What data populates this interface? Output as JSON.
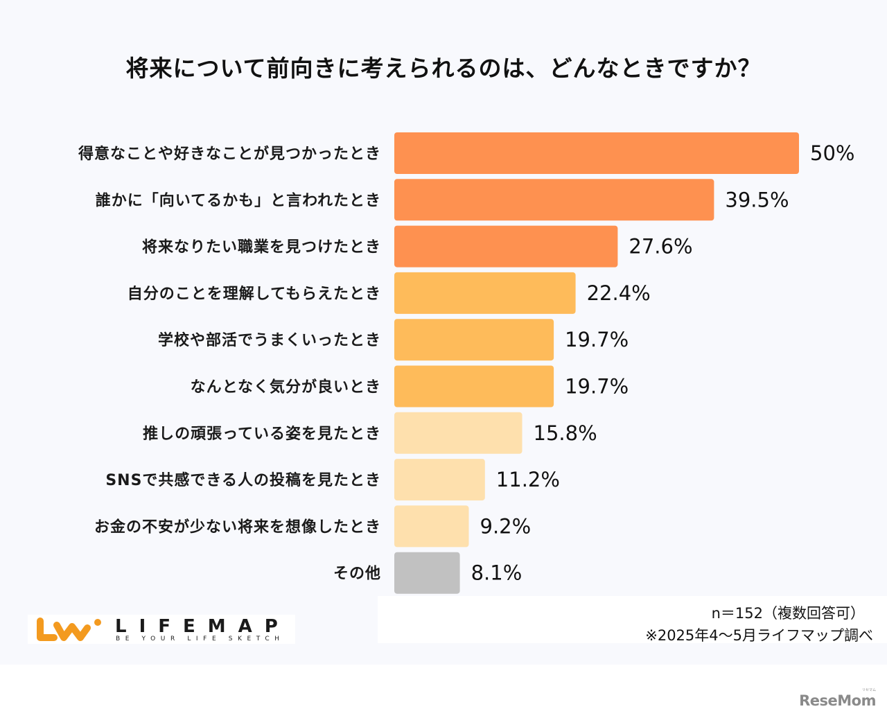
{
  "chart_data": {
    "type": "bar",
    "orientation": "horizontal",
    "title": "将来について前向きに考えられるのは、どんなときですか？",
    "xlabel": "",
    "ylabel": "",
    "xlim": [
      0,
      50
    ],
    "grid": false,
    "legend": "none",
    "categories": [
      "得意なことや好きなことが見つかったとき",
      "誰かに「向いてるかも」と言われたとき",
      "将来なりたい職業を見つけたとき",
      "自分のことを理解してもらえたとき",
      "学校や部活でうまくいったとき",
      "なんとなく気分が良いとき",
      "推しの頑張っている姿を見たとき",
      "SNSで共感できる人の投稿を見たとき",
      "お金の不安が少ない将来を想像したとき",
      "その他"
    ],
    "values": [
      50,
      39.5,
      27.6,
      22.4,
      19.7,
      19.7,
      15.8,
      11.2,
      9.2,
      8.1
    ],
    "value_labels": [
      "50%",
      "39.5%",
      "27.6%",
      "22.4%",
      "19.7%",
      "19.7%",
      "15.8%",
      "11.2%",
      "9.2%",
      "8.1%"
    ],
    "bar_colors": [
      "#fe9150",
      "#fe9150",
      "#fe9150",
      "#febb5a",
      "#febb5a",
      "#febb5a",
      "#fee0ad",
      "#fee0ad",
      "#fee0ad",
      "#c1c1c1"
    ]
  },
  "footer": {
    "sample_note": "n＝152（複数回答可）",
    "source_note": "※2025年4〜5月ライフマップ調べ"
  },
  "logo": {
    "wordmark": "LIFEMAP",
    "tagline": "BE YOUR LIFE SKETCH",
    "brand_color": "#f39a1f"
  },
  "watermark": {
    "text": "ReseMom",
    "ruby": "リセマム"
  }
}
